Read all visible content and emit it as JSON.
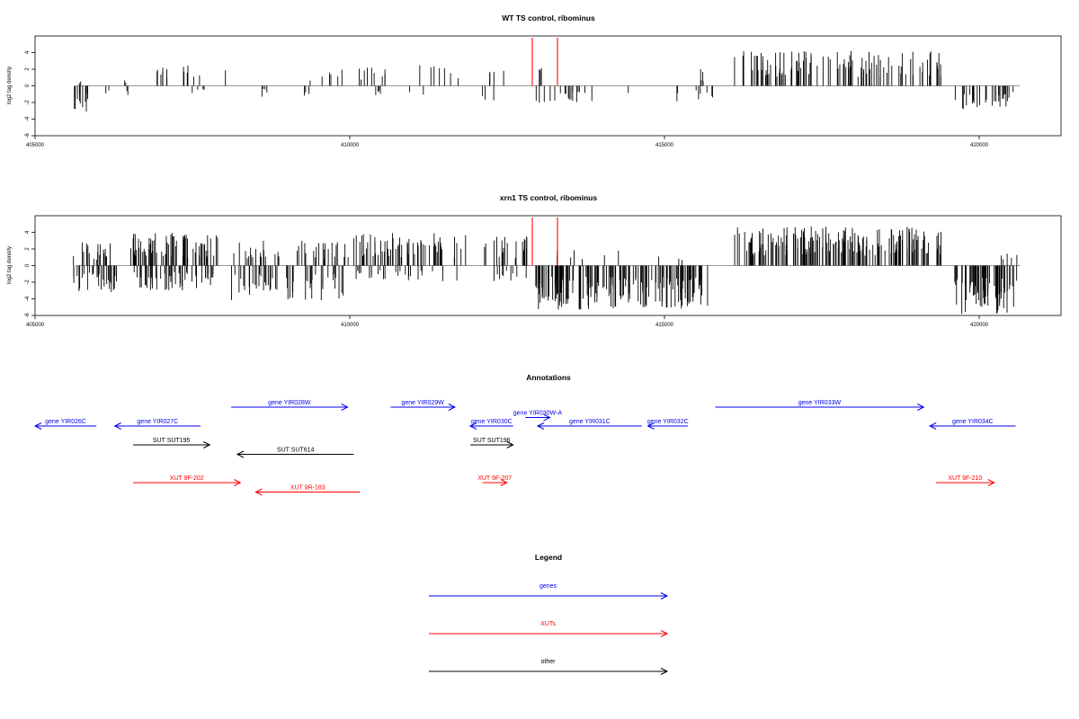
{
  "chart_data": [
    {
      "type": "bar",
      "title": "WT TS control, ribominus",
      "ylabel": "log2 tag density",
      "xlabel": "",
      "xlim": [
        405000,
        421300
      ],
      "ylim": [
        -6,
        6
      ],
      "x_ticks": [
        405000,
        410000,
        415000,
        420000
      ],
      "y_ticks": [
        -6,
        -4,
        -2,
        0,
        2,
        4
      ],
      "highlight_lines": [
        412900,
        413300
      ],
      "highlight_color": "#ff3b3b",
      "bar_color": "#000000",
      "segments": [
        {
          "range": [
            405600,
            405900
          ],
          "sign": -1,
          "count": 12,
          "max": 3.5,
          "seed": 11
        },
        {
          "range": [
            405700,
            405800
          ],
          "sign": 1,
          "count": 2,
          "max": 1.0,
          "seed": 12
        },
        {
          "range": [
            406100,
            406200
          ],
          "sign": -1,
          "count": 2,
          "max": 1.5,
          "seed": 13
        },
        {
          "range": [
            406400,
            406500
          ],
          "sign": 1,
          "count": 2,
          "max": 1.0,
          "seed": 14
        },
        {
          "range": [
            406450,
            406550
          ],
          "sign": -1,
          "count": 2,
          "max": 1.5,
          "seed": 15
        },
        {
          "range": [
            406900,
            407700
          ],
          "sign": 1,
          "count": 14,
          "max": 2.5,
          "seed": 16
        },
        {
          "range": [
            407400,
            407800
          ],
          "sign": -1,
          "count": 4,
          "max": 1.0,
          "seed": 17
        },
        {
          "range": [
            408000,
            408100
          ],
          "sign": 1,
          "count": 1,
          "max": 2.0,
          "seed": 18
        },
        {
          "range": [
            408600,
            408700
          ],
          "sign": -1,
          "count": 4,
          "max": 1.5,
          "seed": 19
        },
        {
          "range": [
            409200,
            409900
          ],
          "sign": 1,
          "count": 6,
          "max": 2.0,
          "seed": 20
        },
        {
          "range": [
            409200,
            409600
          ],
          "sign": -1,
          "count": 3,
          "max": 2.0,
          "seed": 21
        },
        {
          "range": [
            410100,
            411800
          ],
          "sign": 1,
          "count": 16,
          "max": 2.5,
          "seed": 22
        },
        {
          "range": [
            410100,
            411600
          ],
          "sign": -1,
          "count": 6,
          "max": 1.2,
          "seed": 23
        },
        {
          "range": [
            412100,
            412600
          ],
          "sign": 1,
          "count": 4,
          "max": 2.5,
          "seed": 24
        },
        {
          "range": [
            412100,
            412300
          ],
          "sign": -1,
          "count": 3,
          "max": 2.5,
          "seed": 25
        },
        {
          "range": [
            412950,
            413900
          ],
          "sign": -1,
          "count": 18,
          "max": 2.5,
          "seed": 26
        },
        {
          "range": [
            412950,
            413200
          ],
          "sign": 1,
          "count": 3,
          "max": 2.5,
          "seed": 27
        },
        {
          "range": [
            414400,
            414500
          ],
          "sign": -1,
          "count": 1,
          "max": 1.0,
          "seed": 28
        },
        {
          "range": [
            415000,
            415800
          ],
          "sign": -1,
          "count": 8,
          "max": 2.0,
          "seed": 29
        },
        {
          "range": [
            415500,
            415800
          ],
          "sign": 1,
          "count": 4,
          "max": 2.0,
          "seed": 30
        },
        {
          "range": [
            416100,
            419400
          ],
          "sign": 1,
          "count": 110,
          "max": 4.2,
          "seed": 31
        },
        {
          "range": [
            419600,
            420600
          ],
          "sign": -1,
          "count": 30,
          "max": 2.8,
          "seed": 32
        }
      ]
    },
    {
      "type": "bar",
      "title": "xrn1 TS control, ribominus",
      "ylabel": "log2 tag density",
      "xlabel": "",
      "xlim": [
        405000,
        421300
      ],
      "ylim": [
        -6,
        6
      ],
      "x_ticks": [
        405000,
        410000,
        415000,
        420000
      ],
      "y_ticks": [
        -6,
        -4,
        -2,
        0,
        2,
        4
      ],
      "highlight_lines": [
        412900,
        413300
      ],
      "highlight_color": "#ff3b3b",
      "bar_color": "#000000",
      "segments": [
        {
          "range": [
            405600,
            406200
          ],
          "sign": 1,
          "count": 20,
          "max": 2.8,
          "seed": 41
        },
        {
          "range": [
            405600,
            406300
          ],
          "sign": -1,
          "count": 30,
          "max": 3.2,
          "seed": 42
        },
        {
          "range": [
            406500,
            407900
          ],
          "sign": 1,
          "count": 70,
          "max": 4.0,
          "seed": 43
        },
        {
          "range": [
            406500,
            407900
          ],
          "sign": -1,
          "count": 50,
          "max": 3.0,
          "seed": 44
        },
        {
          "range": [
            408100,
            410000
          ],
          "sign": 1,
          "count": 40,
          "max": 3.0,
          "seed": 45
        },
        {
          "range": [
            408100,
            409900
          ],
          "sign": -1,
          "count": 50,
          "max": 4.2,
          "seed": 46
        },
        {
          "range": [
            410050,
            410100
          ],
          "sign": 1,
          "count": 1,
          "max": 5.0,
          "seed": 47
        },
        {
          "range": [
            410100,
            411900
          ],
          "sign": 1,
          "count": 60,
          "max": 4.0,
          "seed": 48
        },
        {
          "range": [
            410100,
            411900
          ],
          "sign": -1,
          "count": 25,
          "max": 2.0,
          "seed": 49
        },
        {
          "range": [
            412100,
            412850
          ],
          "sign": 1,
          "count": 20,
          "max": 3.5,
          "seed": 50
        },
        {
          "range": [
            412100,
            412850
          ],
          "sign": -1,
          "count": 10,
          "max": 2.0,
          "seed": 51
        },
        {
          "range": [
            412950,
            415700
          ],
          "sign": -1,
          "count": 170,
          "max": 5.3,
          "seed": 52
        },
        {
          "range": [
            413000,
            415700
          ],
          "sign": 1,
          "count": 10,
          "max": 2.5,
          "seed": 53
        },
        {
          "range": [
            416100,
            419400
          ],
          "sign": 1,
          "count": 180,
          "max": 4.7,
          "seed": 54
        },
        {
          "range": [
            419600,
            420600
          ],
          "sign": -1,
          "count": 70,
          "max": 5.8,
          "seed": 55
        },
        {
          "range": [
            420300,
            420600
          ],
          "sign": 1,
          "count": 5,
          "max": 1.5,
          "seed": 56
        }
      ]
    }
  ],
  "annotations": {
    "title": "Annotations",
    "x_range": [
      405000,
      421300
    ],
    "colors": {
      "gene": "#0000ee",
      "xut": "#ff0000",
      "other": "#000000"
    },
    "features": [
      {
        "label": "gene YIR026C",
        "start": 405000,
        "end": 406000,
        "strand": "-",
        "row": 1,
        "kind": "gene"
      },
      {
        "label": "gene YIR027C",
        "start": 406300,
        "end": 407700,
        "strand": "-",
        "row": 1,
        "kind": "gene"
      },
      {
        "label": "gene YIR028W",
        "start": 408200,
        "end": 410100,
        "strand": "+",
        "row": 0,
        "kind": "gene"
      },
      {
        "label": "gene YIR029W",
        "start": 410800,
        "end": 411850,
        "strand": "+",
        "row": 0,
        "kind": "gene"
      },
      {
        "label": "gene YIR030C",
        "start": 412100,
        "end": 412800,
        "strand": "-",
        "row": 1,
        "kind": "gene"
      },
      {
        "label": "gene YIR030W-A",
        "start": 413000,
        "end": 413400,
        "strand": "+",
        "row": 0.55,
        "kind": "gene"
      },
      {
        "label": "gene YIR031C",
        "start": 413200,
        "end": 414900,
        "strand": "-",
        "row": 1,
        "kind": "gene"
      },
      {
        "label": "gene YIR032C",
        "start": 415000,
        "end": 415650,
        "strand": "-",
        "row": 1,
        "kind": "gene"
      },
      {
        "label": "gene YIR033W",
        "start": 416100,
        "end": 419500,
        "strand": "+",
        "row": 0,
        "kind": "gene"
      },
      {
        "label": "gene YIR034C",
        "start": 419600,
        "end": 421000,
        "strand": "-",
        "row": 1,
        "kind": "gene"
      },
      {
        "label": "SUT SUT195",
        "start": 406600,
        "end": 407850,
        "strand": "+",
        "row": 2,
        "kind": "other"
      },
      {
        "label": "SUT SUT614",
        "start": 408300,
        "end": 410200,
        "strand": "-",
        "row": 2.5,
        "kind": "other"
      },
      {
        "label": "SUT SUT196",
        "start": 412100,
        "end": 412800,
        "strand": "+",
        "row": 2,
        "kind": "other"
      },
      {
        "label": "XUT 9F-202",
        "start": 406600,
        "end": 408350,
        "strand": "+",
        "row": 4,
        "kind": "xut"
      },
      {
        "label": "XUT 9R-183",
        "start": 408600,
        "end": 410300,
        "strand": "-",
        "row": 4.5,
        "kind": "xut"
      },
      {
        "label": "XUT 9F-207",
        "start": 412300,
        "end": 412700,
        "strand": "+",
        "row": 4,
        "kind": "xut"
      },
      {
        "label": "XUT 9F-210",
        "start": 419700,
        "end": 420650,
        "strand": "+",
        "row": 4,
        "kind": "xut"
      }
    ]
  },
  "legend": {
    "title": "Legend",
    "items": [
      {
        "label": "genes",
        "color": "#0000ee"
      },
      {
        "label": "XUTs",
        "color": "#ff0000"
      },
      {
        "label": "other",
        "color": "#000000"
      }
    ]
  }
}
